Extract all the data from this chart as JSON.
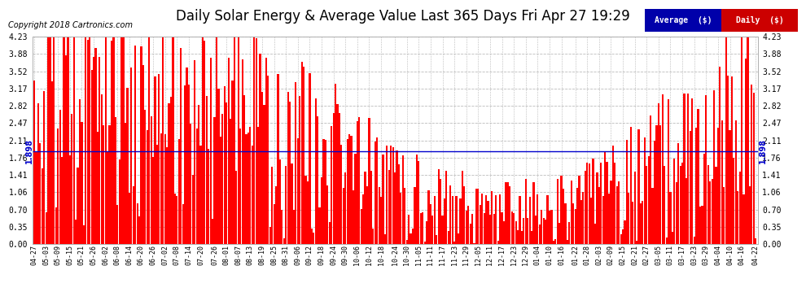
{
  "title": "Daily Solar Energy & Average Value Last 365 Days Fri Apr 27 19:29",
  "copyright": "Copyright 2018 Cartronics.com",
  "average_value": 1.898,
  "average_label": "1.898",
  "ylim": [
    0.0,
    4.23
  ],
  "yticks": [
    0.0,
    0.35,
    0.7,
    1.06,
    1.41,
    1.76,
    2.11,
    2.47,
    2.82,
    3.17,
    3.52,
    3.88,
    4.23
  ],
  "bar_color": "#FF0000",
  "avg_line_color": "#0000CC",
  "background_color": "#FFFFFF",
  "grid_color": "#BBBBBB",
  "title_fontsize": 12,
  "legend_avg_bg": "#0000AA",
  "legend_daily_bg": "#CC0000",
  "x_labels": [
    "04-27",
    "05-03",
    "05-09",
    "05-15",
    "05-21",
    "05-26",
    "06-02",
    "06-08",
    "06-14",
    "06-20",
    "06-26",
    "07-02",
    "07-08",
    "07-14",
    "07-20",
    "07-26",
    "08-01",
    "08-07",
    "08-13",
    "08-19",
    "08-25",
    "08-31",
    "09-06",
    "09-12",
    "09-18",
    "09-24",
    "09-30",
    "10-06",
    "10-12",
    "10-18",
    "10-24",
    "10-30",
    "11-05",
    "11-11",
    "11-17",
    "11-23",
    "11-29",
    "12-05",
    "12-11",
    "12-17",
    "12-23",
    "12-29",
    "01-04",
    "01-10",
    "01-16",
    "01-22",
    "01-28",
    "02-03",
    "02-09",
    "02-15",
    "02-21",
    "02-27",
    "03-05",
    "03-11",
    "03-17",
    "03-23",
    "03-29",
    "04-04",
    "04-10",
    "04-16",
    "04-22"
  ],
  "num_bars": 365
}
